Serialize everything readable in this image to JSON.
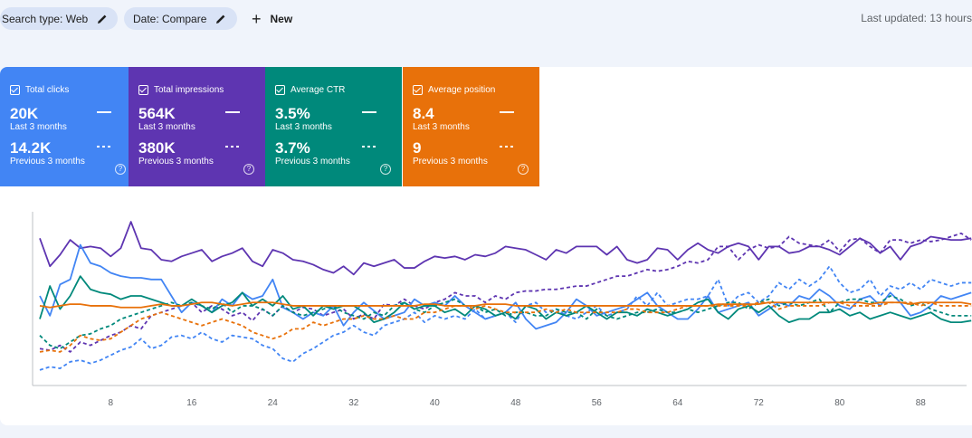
{
  "filters": {
    "search_type": "Search type: Web",
    "date": "Date: Compare",
    "new_label": "New"
  },
  "last_updated": "Last updated: 13 hours",
  "cards": [
    {
      "name": "Total clicks",
      "current": "20K",
      "current_label": "Last 3 months",
      "previous": "14.2K",
      "previous_label": "Previous 3 months",
      "color": "#4285f4"
    },
    {
      "name": "Total impressions",
      "current": "564K",
      "current_label": "Last 3 months",
      "previous": "380K",
      "previous_label": "Previous 3 months",
      "color": "#5e35b1"
    },
    {
      "name": "Average CTR",
      "current": "3.5%",
      "current_label": "Last 3 months",
      "previous": "3.7%",
      "previous_label": "Previous 3 months",
      "color": "#00897b"
    },
    {
      "name": "Average position",
      "current": "8.4",
      "current_label": "Last 3 months",
      "previous": "9",
      "previous_label": "Previous 3 months",
      "color": "#e8710a"
    }
  ],
  "chart_data": {
    "type": "line",
    "x_ticks": [
      8,
      16,
      24,
      32,
      40,
      48,
      56,
      64,
      72,
      80,
      88
    ],
    "xlim": [
      1,
      92
    ],
    "ylim": [
      0,
      100
    ],
    "grid": false,
    "series": [
      {
        "color": "#5e35b1",
        "style": "solid",
        "values": [
          85,
          68,
          75,
          84,
          79,
          80,
          79,
          74,
          79,
          95,
          79,
          78,
          72,
          71,
          74,
          76,
          78,
          71,
          74,
          76,
          79,
          71,
          68,
          78,
          76,
          72,
          71,
          69,
          66,
          64,
          68,
          63,
          70,
          68,
          70,
          72,
          67,
          67,
          71,
          74,
          73,
          74,
          72,
          75,
          74,
          76,
          80,
          79,
          78,
          75,
          72,
          78,
          76,
          80,
          80,
          80,
          75,
          80,
          72,
          70,
          72,
          79,
          78,
          72,
          78,
          82,
          78,
          76,
          80,
          82,
          80,
          72,
          80,
          80,
          76,
          77,
          80,
          80,
          78,
          75,
          80,
          85,
          82,
          76,
          80,
          72,
          80,
          82,
          86,
          85,
          84,
          84,
          85
        ]
      },
      {
        "color": "#5e35b1",
        "style": "dashed",
        "values": [
          18,
          17,
          20,
          16,
          22,
          20,
          23,
          26,
          28,
          32,
          30,
          38,
          40,
          42,
          44,
          46,
          40,
          44,
          42,
          38,
          40,
          35,
          42,
          38,
          44,
          40,
          43,
          42,
          38,
          40,
          42,
          36,
          39,
          36,
          45,
          44,
          48,
          44,
          42,
          46,
          48,
          52,
          50,
          50,
          46,
          50,
          48,
          52,
          53,
          53,
          54,
          54,
          55,
          56,
          56,
          58,
          60,
          62,
          62,
          64,
          66,
          65,
          66,
          68,
          71,
          70,
          72,
          80,
          80,
          72,
          78,
          81,
          79,
          80,
          86,
          82,
          81,
          80,
          84,
          77,
          84,
          85,
          80,
          76,
          84,
          84,
          82,
          84,
          83,
          84,
          86,
          88,
          84
        ]
      },
      {
        "color": "#4285f4",
        "style": "solid",
        "values": [
          50,
          38,
          57,
          60,
          81,
          70,
          68,
          64,
          62,
          61,
          61,
          60,
          60,
          50,
          40,
          46,
          44,
          40,
          48,
          44,
          52,
          48,
          50,
          60,
          43,
          40,
          36,
          40,
          38,
          44,
          32,
          40,
          46,
          41,
          36,
          38,
          40,
          48,
          44,
          46,
          44,
          50,
          44,
          40,
          36,
          38,
          40,
          46,
          36,
          30,
          32,
          34,
          40,
          48,
          44,
          38,
          40,
          42,
          44,
          48,
          52,
          44,
          40,
          36,
          36,
          42,
          50,
          40,
          42,
          44,
          46,
          38,
          42,
          46,
          44,
          50,
          48,
          54,
          50,
          44,
          42,
          48,
          50,
          44,
          52,
          46,
          38,
          40,
          44,
          50,
          48,
          50,
          52
        ]
      },
      {
        "color": "#4285f4",
        "style": "dashed",
        "values": [
          5,
          7,
          6,
          10,
          11,
          9,
          11,
          14,
          17,
          19,
          24,
          18,
          20,
          25,
          26,
          24,
          28,
          24,
          22,
          26,
          25,
          24,
          20,
          18,
          12,
          10,
          15,
          18,
          22,
          26,
          28,
          32,
          28,
          26,
          32,
          34,
          36,
          40,
          34,
          38,
          36,
          38,
          36,
          42,
          36,
          38,
          40,
          34,
          44,
          46,
          40,
          42,
          38,
          36,
          40,
          44,
          38,
          40,
          42,
          50,
          44,
          52,
          44,
          46,
          48,
          48,
          50,
          60,
          44,
          50,
          52,
          46,
          50,
          58,
          54,
          60,
          56,
          60,
          68,
          58,
          52,
          54,
          60,
          50,
          56,
          54,
          58,
          54,
          60,
          58,
          56,
          58,
          58
        ]
      },
      {
        "color": "#00897b",
        "style": "solid",
        "values": [
          36,
          56,
          42,
          50,
          62,
          54,
          52,
          51,
          48,
          50,
          50,
          48,
          46,
          44,
          44,
          48,
          44,
          40,
          44,
          46,
          52,
          44,
          48,
          44,
          50,
          42,
          44,
          38,
          44,
          42,
          44,
          44,
          40,
          34,
          36,
          40,
          46,
          42,
          44,
          44,
          40,
          42,
          38,
          44,
          42,
          38,
          40,
          36,
          44,
          42,
          36,
          40,
          38,
          40,
          44,
          40,
          36,
          40,
          40,
          38,
          42,
          40,
          38,
          40,
          42,
          46,
          48,
          40,
          36,
          42,
          44,
          40,
          44,
          38,
          34,
          36,
          36,
          40,
          40,
          42,
          38,
          40,
          36,
          38,
          40,
          38,
          36,
          38,
          40,
          36,
          34,
          34,
          35
        ]
      },
      {
        "color": "#00897b",
        "style": "dashed",
        "values": [
          26,
          20,
          18,
          22,
          26,
          27,
          30,
          32,
          36,
          38,
          40,
          42,
          44,
          46,
          44,
          46,
          44,
          42,
          46,
          40,
          44,
          44,
          42,
          38,
          44,
          40,
          38,
          40,
          42,
          44,
          40,
          38,
          36,
          40,
          38,
          44,
          46,
          42,
          40,
          44,
          46,
          48,
          44,
          44,
          40,
          42,
          38,
          40,
          40,
          38,
          38,
          42,
          40,
          40,
          36,
          42,
          38,
          36,
          38,
          40,
          40,
          42,
          40,
          40,
          42,
          40,
          42,
          44,
          46,
          46,
          42,
          46,
          48,
          44,
          46,
          44,
          46,
          48,
          40,
          46,
          48,
          48,
          46,
          46,
          50,
          48,
          44,
          46,
          42,
          40,
          38,
          38,
          38
        ]
      },
      {
        "color": "#e8710a",
        "style": "solid",
        "values": [
          44,
          43,
          44,
          45,
          45,
          44,
          44,
          44,
          43,
          43,
          43,
          44,
          45,
          44,
          44,
          45,
          46,
          46,
          45,
          44,
          45,
          46,
          46,
          46,
          45,
          44,
          44,
          44,
          44,
          44,
          44,
          44,
          44,
          44,
          44,
          44,
          44,
          44,
          45,
          45,
          44,
          44,
          44,
          44,
          45,
          45,
          45,
          44,
          44,
          44,
          44,
          44,
          44,
          44,
          44,
          44,
          44,
          44,
          44,
          44,
          44,
          44,
          44,
          44,
          44,
          44,
          44,
          45,
          45,
          45,
          45,
          45,
          46,
          46,
          46,
          46,
          46,
          46,
          46,
          46,
          46,
          46,
          45,
          46,
          46,
          46,
          45,
          46,
          46,
          46,
          46,
          46,
          45
        ]
      },
      {
        "color": "#e8710a",
        "style": "dashed",
        "values": [
          16,
          17,
          16,
          20,
          26,
          24,
          23,
          24,
          28,
          32,
          36,
          38,
          40,
          38,
          36,
          34,
          32,
          34,
          36,
          34,
          32,
          28,
          26,
          24,
          26,
          30,
          30,
          34,
          32,
          34,
          36,
          36,
          38,
          36,
          36,
          38,
          36,
          36,
          40,
          40,
          42,
          44,
          44,
          42,
          44,
          42,
          40,
          40,
          40,
          40,
          42,
          40,
          42,
          40,
          40,
          40,
          40,
          40,
          42,
          42,
          40,
          40,
          40,
          42,
          44,
          44,
          44,
          44,
          44,
          44,
          44,
          46,
          46,
          42,
          44,
          44,
          44,
          44,
          46,
          46,
          44,
          44,
          44,
          44,
          46,
          46,
          46,
          44,
          46,
          44,
          44,
          44,
          44
        ]
      }
    ]
  }
}
